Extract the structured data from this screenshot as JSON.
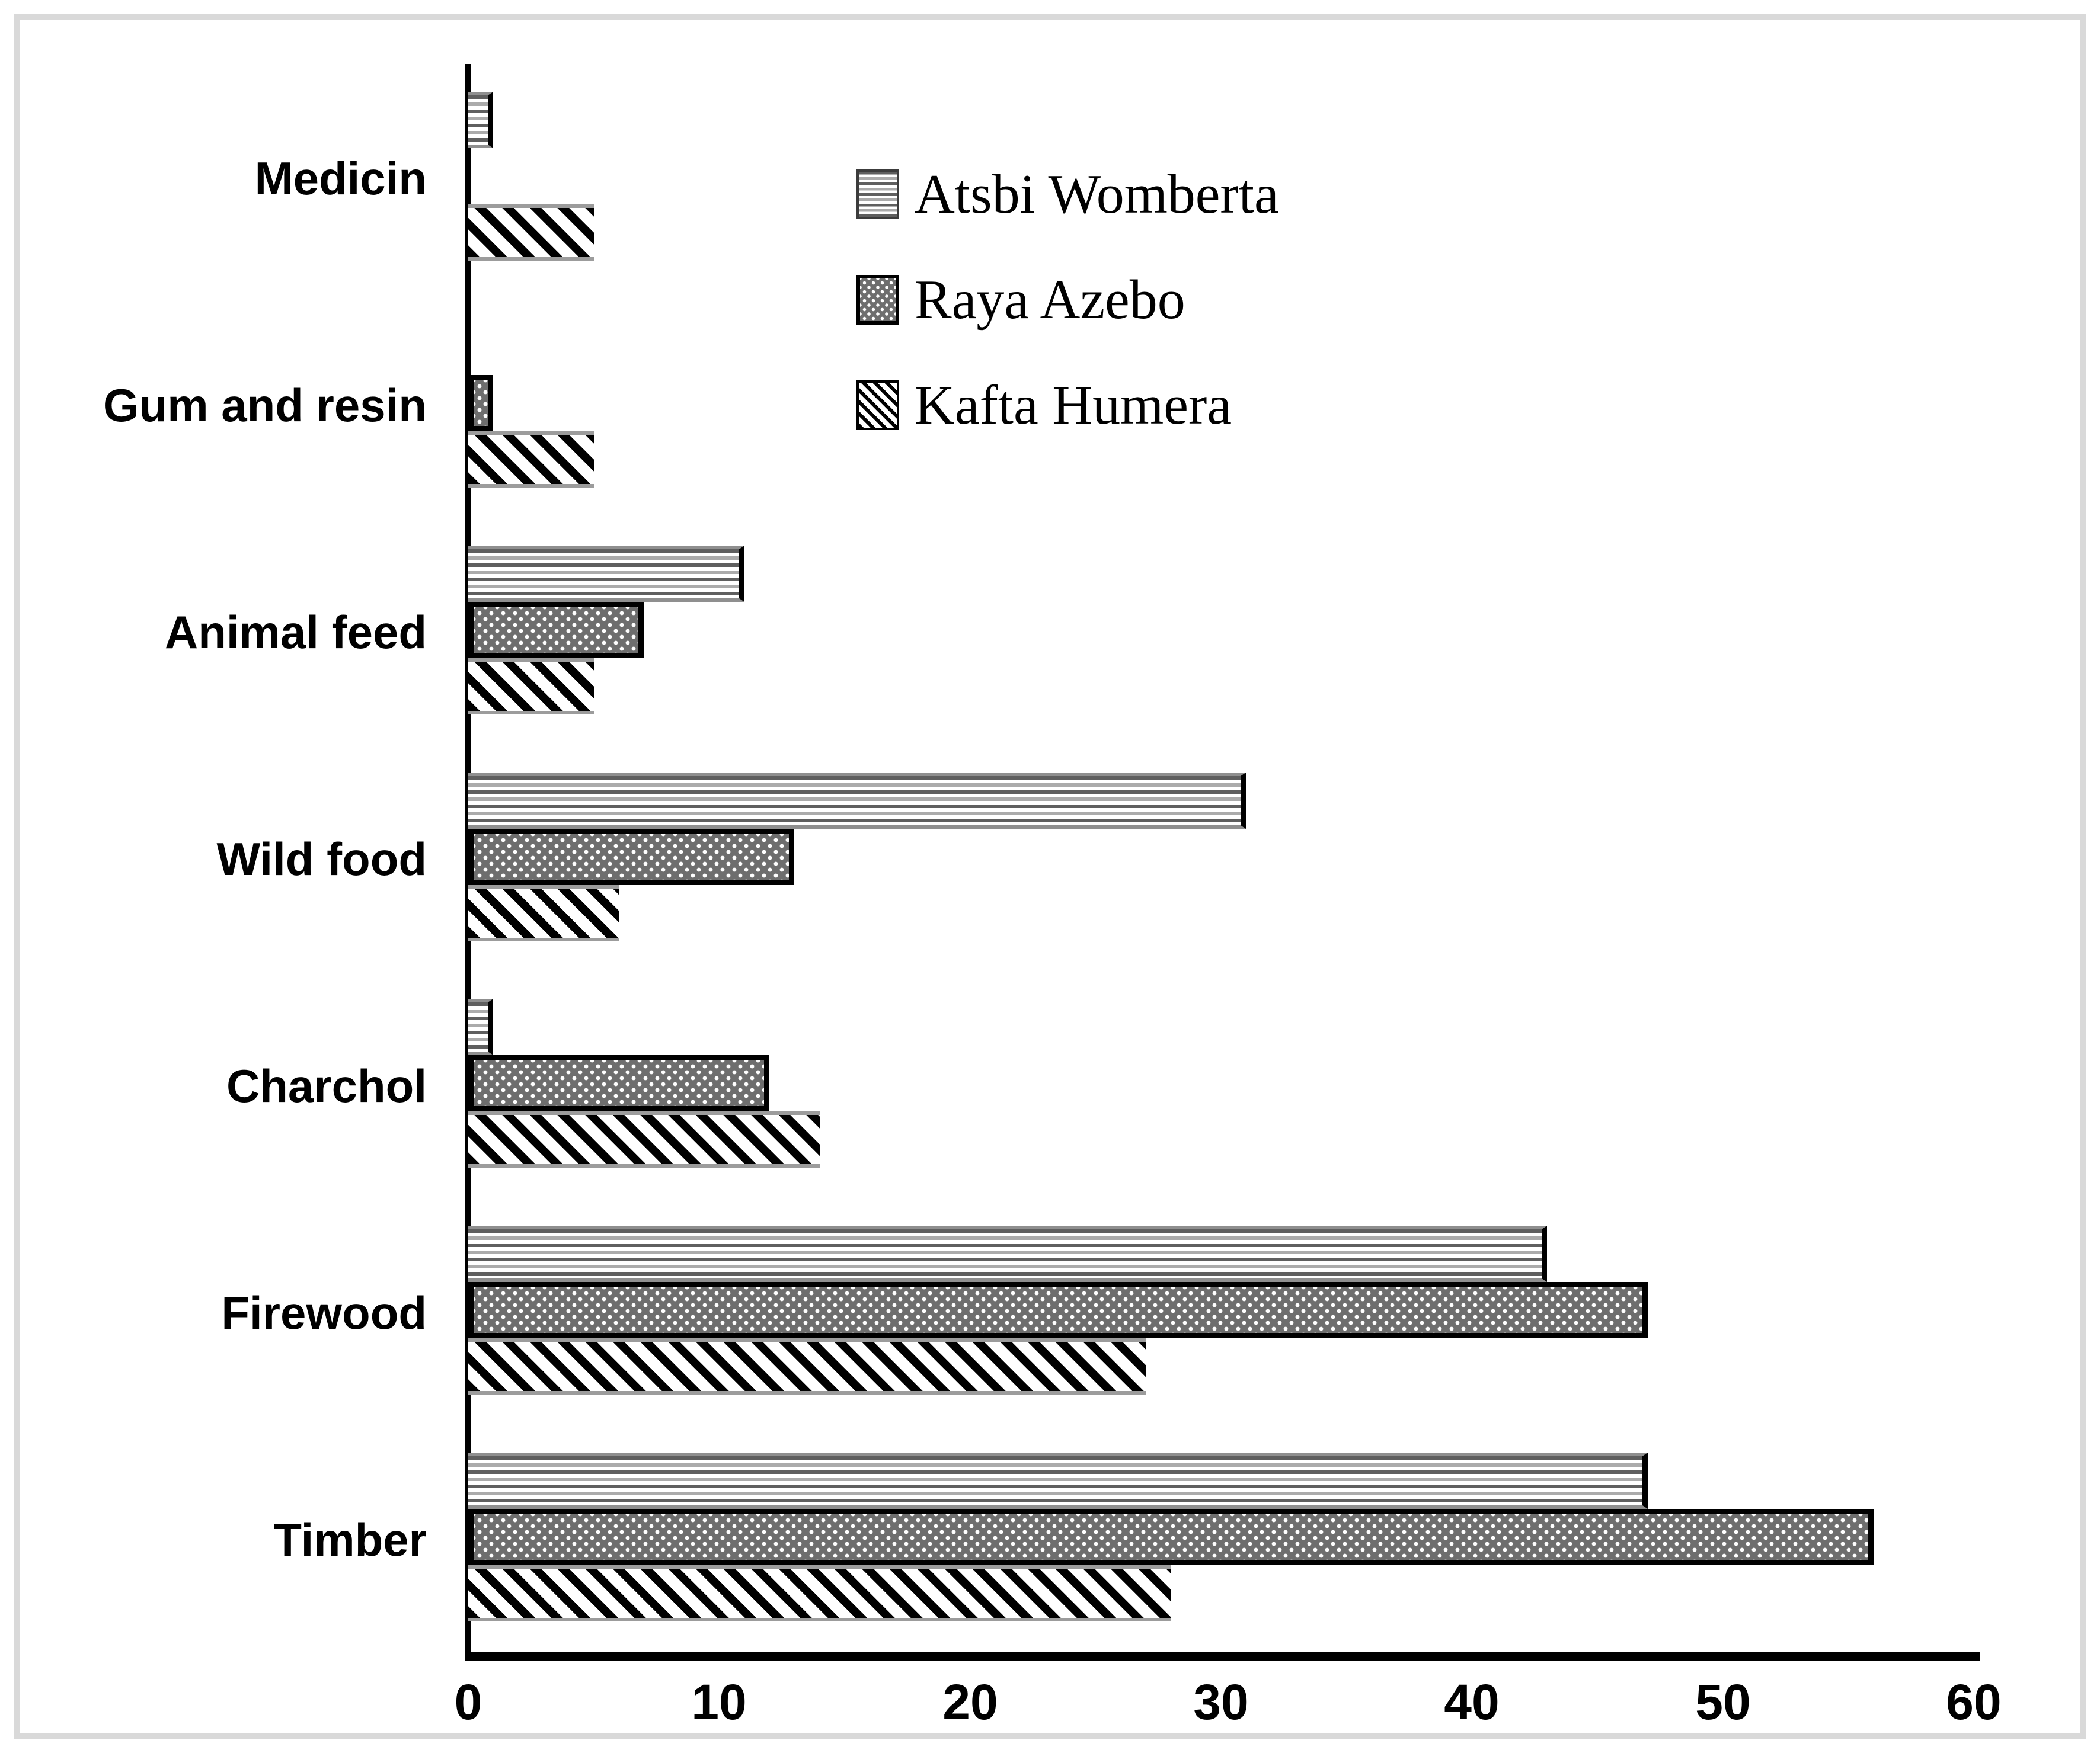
{
  "chart_data": {
    "type": "bar",
    "orientation": "horizontal",
    "title": "",
    "categories": [
      "Medicin",
      "Gum and resin",
      "Animal feed",
      "Wild food",
      "Charchol",
      "Firewood",
      "Timber"
    ],
    "category_order_note": "listed top to bottom as rendered",
    "series": [
      {
        "name": "Atsbi Womberta",
        "pattern": "horizontal-stripes",
        "values": [
          1,
          0,
          11,
          31,
          1,
          43,
          47
        ]
      },
      {
        "name": "Raya Azebo",
        "pattern": "white-dots-on-dark-gray",
        "values": [
          0,
          1,
          7,
          13,
          12,
          47,
          56
        ]
      },
      {
        "name": "Kafta Humera",
        "pattern": "black-diagonal-stripes",
        "values": [
          5,
          5,
          5,
          6,
          14,
          27,
          28
        ]
      }
    ],
    "bar_order_top_to_bottom": [
      "Atsbi Womberta",
      "Raya Azebo",
      "Kafta Humera"
    ],
    "xlim": [
      0,
      60
    ],
    "x_ticks": [
      "0",
      "10",
      "20",
      "30",
      "40",
      "50",
      "60"
    ],
    "ylabel": "",
    "xlabel": "",
    "grid": false,
    "legend_position": "inside-upper-middle"
  },
  "colors": {
    "background": "#ffffff",
    "frame_border": "#d9d9d9",
    "axis": "#000000",
    "text": "#000000",
    "dot_pattern_fill": "#6e6e6e",
    "stripe_mid_gray": "#ababab"
  }
}
